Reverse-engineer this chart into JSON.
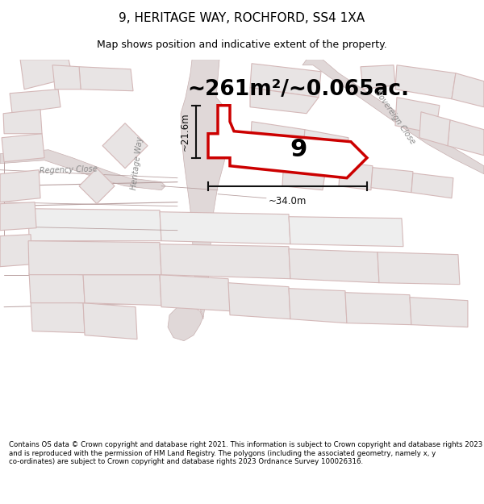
{
  "title": "9, HERITAGE WAY, ROCHFORD, SS4 1XA",
  "subtitle": "Map shows position and indicative extent of the property.",
  "area_text": "~261m²/~0.065ac.",
  "number_label": "9",
  "dim_horizontal": "~34.0m",
  "dim_vertical": "~21.6m",
  "footer": "Contains OS data © Crown copyright and database right 2021. This information is subject to Crown copyright and database rights 2023 and is reproduced with the permission of HM Land Registry. The polygons (including the associated geometry, namely x, y co-ordinates) are subject to Crown copyright and database rights 2023 Ordnance Survey 100026316.",
  "map_bg": "#f9f6f6",
  "plot_fill": "#ffffff",
  "plot_stroke": "#dd0000",
  "bld_fill": "#e8e4e4",
  "bld_stroke": "#d4b8b8",
  "road_fill": "#e0d8d8",
  "road_stroke": "#c8b0b0",
  "pk_fill": "#eee8e8",
  "pk_stroke": "#d4b8b8",
  "label_color": "#b8a0a0",
  "road_label_color": "#888888",
  "dim_color": "#111111",
  "area_color": "#000000"
}
